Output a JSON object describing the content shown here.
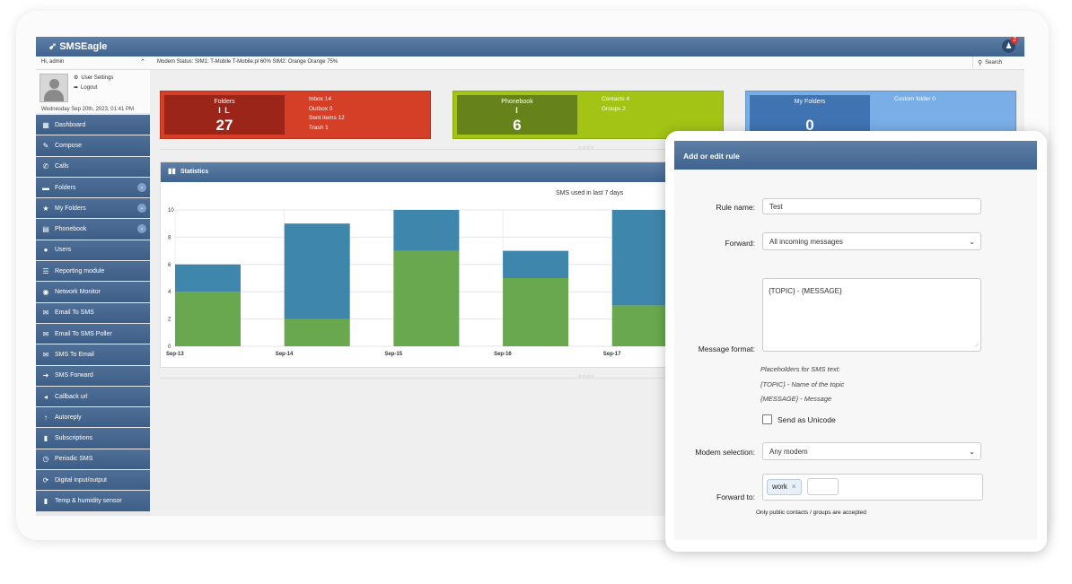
{
  "app": {
    "logo_text": "SMSEagle",
    "notification_count": "2"
  },
  "statusbar": {
    "greeting": "Hi, admin",
    "modem_status": "Modem Status:  SIM1: T-Mobile T-Mobile.pl 60%      SIM2: Orange Orange 75%",
    "search_label": "Search"
  },
  "user": {
    "settings_label": "User Settings",
    "logout_label": "Logout",
    "date": "Wednesday Sep 20th, 2023, 01:41 PM"
  },
  "sidebar": {
    "items": [
      {
        "label": "Dashboard",
        "icon": "dashboard-icon",
        "glyph": "▦",
        "chevron": false
      },
      {
        "label": "Compose",
        "icon": "pencil-icon",
        "glyph": "✎",
        "chevron": false
      },
      {
        "label": "Calls",
        "icon": "phone-icon",
        "glyph": "✆",
        "chevron": false
      },
      {
        "label": "Folders",
        "icon": "folder-icon",
        "glyph": "▬",
        "chevron": true
      },
      {
        "label": "My Folders",
        "icon": "star-icon",
        "glyph": "★",
        "chevron": true
      },
      {
        "label": "Phonebook",
        "icon": "phonebook-icon",
        "glyph": "▤",
        "chevron": true
      },
      {
        "label": "Users",
        "icon": "users-icon",
        "glyph": "●",
        "chevron": false
      },
      {
        "label": "Reporting module",
        "icon": "list-icon",
        "glyph": "☰",
        "chevron": false
      },
      {
        "label": "Network Monitor",
        "icon": "monitor-icon",
        "glyph": "◉",
        "chevron": false
      },
      {
        "label": "Email To SMS",
        "icon": "envelope-icon",
        "glyph": "✉",
        "chevron": false
      },
      {
        "label": "Email To SMS Poller",
        "icon": "envelope-icon",
        "glyph": "✉",
        "chevron": false
      },
      {
        "label": "SMS To Email",
        "icon": "envelope-icon",
        "glyph": "✉",
        "chevron": false
      },
      {
        "label": "SMS Forward",
        "icon": "arrow-right-icon",
        "glyph": "➜",
        "chevron": false
      },
      {
        "label": "Callback url",
        "icon": "callback-icon",
        "glyph": "◂",
        "chevron": false
      },
      {
        "label": "Autoreply",
        "icon": "arrow-up-icon",
        "glyph": "↑",
        "chevron": false
      },
      {
        "label": "Subscriptions",
        "icon": "bookmark-icon",
        "glyph": "▮",
        "chevron": false
      },
      {
        "label": "Periodic SMS",
        "icon": "clock-icon",
        "glyph": "◷",
        "chevron": false
      },
      {
        "label": "Digital input/output",
        "icon": "refresh-icon",
        "glyph": "⟳",
        "chevron": false
      },
      {
        "label": "Temp & humidity sensor",
        "icon": "bar-chart-icon",
        "glyph": "▮",
        "chevron": false
      }
    ]
  },
  "tiles": {
    "folders": {
      "label": "Folders",
      "glyph": "I L",
      "count": "27",
      "lines": [
        "Inbox 14",
        "Outbox 0",
        "Sent items 12",
        "Trash 1"
      ],
      "color": "#cf3a26"
    },
    "phonebook": {
      "label": "Phonebook",
      "glyph": "I",
      "count": "6",
      "lines": [
        "Contacts 4",
        "Groups 2"
      ],
      "color": "#94b70f"
    },
    "my_folders": {
      "label": "My Folders",
      "count": "0",
      "lines": [
        "Custom folder 0"
      ],
      "color": "#6e9fd6"
    }
  },
  "statistics": {
    "title": "Statistics"
  },
  "chart_data": {
    "type": "bar",
    "title": "SMS used in last 7 days",
    "categories": [
      "Sep-13",
      "Sep-14",
      "Sep-15",
      "Sep-16",
      "Sep-17"
    ],
    "series": [
      {
        "values": [
          4,
          2,
          7,
          5,
          3
        ],
        "color": "#6aa84f"
      },
      {
        "values": [
          2,
          7,
          3,
          2,
          7
        ],
        "color": "#3f86ad"
      }
    ],
    "ylim": [
      0,
      10
    ],
    "yticks": [
      0,
      2,
      4,
      6,
      8,
      10
    ],
    "grid": true
  },
  "modal": {
    "title": "Add or edit rule",
    "rule_name_label": "Rule name:",
    "rule_name_value": "Test",
    "forward_label": "Forward:",
    "forward_value": "All incoming messages",
    "message_format_label": "Message format:",
    "message_format_value": "{TOPIC} - {MESSAGE}",
    "placeholders_title": "Placeholders for SMS text:",
    "placeholder_topic": "{TOPIC} - Name of the topic",
    "placeholder_message": "{MESSAGE} - Message",
    "unicode_label": "Send as Unicode",
    "modem_label": "Modem selection:",
    "modem_value": "Any modem",
    "forward_to_label": "Forward to:",
    "forward_to_tag": "work",
    "note": "Only public contacts / groups are accepted"
  }
}
